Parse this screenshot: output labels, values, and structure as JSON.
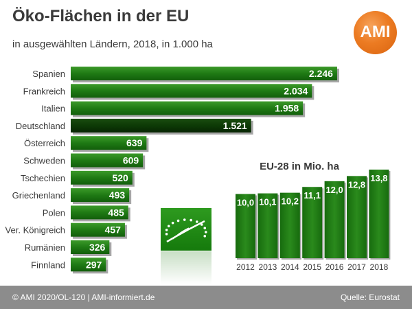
{
  "header": {
    "title": "Öko-Flächen in der EU",
    "subtitle": "in ausgewählten Ländern, 2018, in 1.000 ha",
    "logo_text": "AMI"
  },
  "colors": {
    "bar": "#1e7a14",
    "bar_highlight": "#0b3a05",
    "logo": "#ec7b22",
    "footer": "#8c8c8c"
  },
  "chart_data": [
    {
      "type": "bar",
      "orientation": "horizontal",
      "categories": [
        "Spanien",
        "Frankreich",
        "Italien",
        "Deutschland",
        "Österreich",
        "Schweden",
        "Tschechien",
        "Griechenland",
        "Polen",
        "Ver. Königreich",
        "Rumänien",
        "Finnland"
      ],
      "values": [
        2246,
        2034,
        1958,
        1521,
        639,
        609,
        520,
        493,
        485,
        457,
        326,
        297
      ],
      "value_labels": [
        "2.246",
        "2.034",
        "1.958",
        "1.521",
        "639",
        "609",
        "520",
        "493",
        "485",
        "457",
        "326",
        "297"
      ],
      "highlight": "Deutschland",
      "xlim": [
        0,
        2310
      ],
      "grid": false
    },
    {
      "type": "bar",
      "title": "EU-28 in Mio. ha",
      "categories": [
        "2012",
        "2013",
        "2014",
        "2015",
        "2016",
        "2017",
        "2018"
      ],
      "values": [
        10.0,
        10.1,
        10.2,
        11.1,
        12.0,
        12.8,
        13.8
      ],
      "value_labels": [
        "10,0",
        "10,1",
        "10,2",
        "11,1",
        "12,0",
        "12,8",
        "13,8"
      ],
      "grid": false
    }
  ],
  "footer": {
    "copyright": "© AMI 2020/OL-120 | AMI-informiert.de",
    "source": "Quelle: Eurostat"
  }
}
